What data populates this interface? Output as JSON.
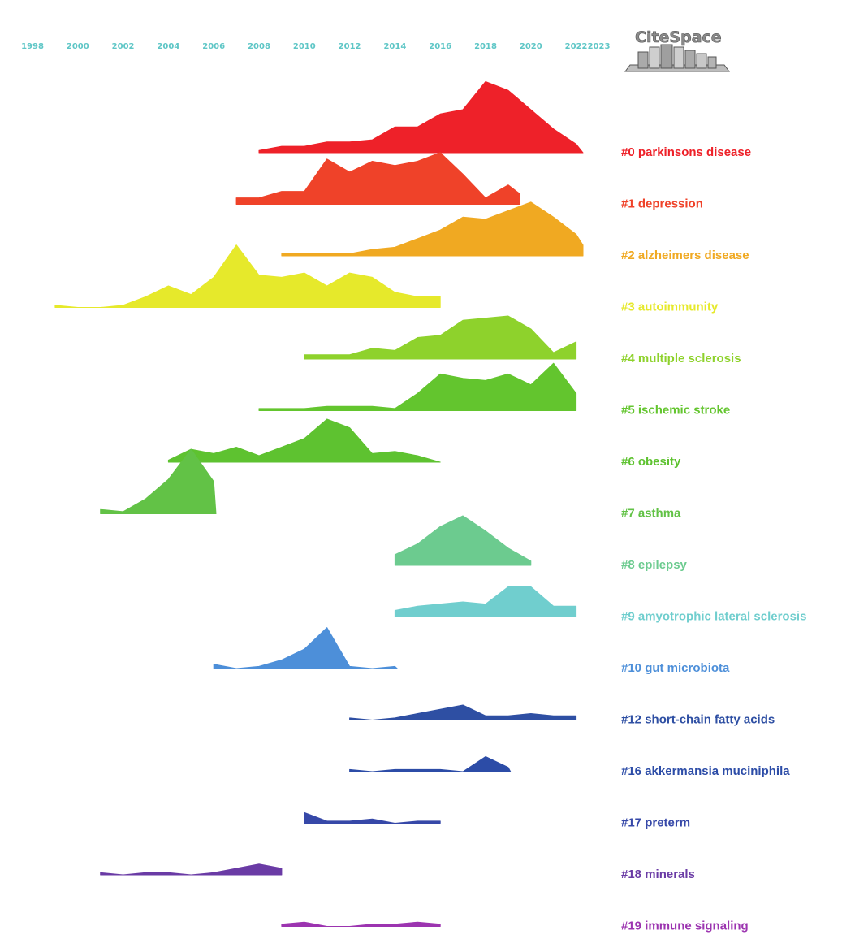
{
  "logo": {
    "text": "CiteSpace"
  },
  "colors": {
    "year_axis": "#5ec6c6",
    "logo_text": "#8a8a8a",
    "logo_stroke": "#555555"
  },
  "chart_data": {
    "type": "area",
    "subtype": "timeline-view",
    "x_ticks": [
      "1998",
      "2000",
      "2002",
      "2004",
      "2006",
      "2008",
      "2010",
      "2012",
      "2014",
      "2016",
      "2018",
      "2020",
      "2022",
      "2023"
    ],
    "xlim": [
      1998,
      2023
    ],
    "series": [
      {
        "name": "#0 parkinsons disease",
        "color": "#ee2129",
        "points": [
          [
            2008,
            1
          ],
          [
            2009,
            3
          ],
          [
            2010,
            3
          ],
          [
            2011,
            5
          ],
          [
            2012,
            5
          ],
          [
            2013,
            6
          ],
          [
            2014,
            12
          ],
          [
            2015,
            12
          ],
          [
            2016,
            18
          ],
          [
            2017,
            20
          ],
          [
            2018,
            33
          ],
          [
            2019,
            29
          ],
          [
            2020,
            20
          ],
          [
            2021,
            11
          ],
          [
            2022,
            4
          ],
          [
            2022.3,
            0
          ]
        ]
      },
      {
        "name": "#1 depression",
        "color": "#ef4229",
        "points": [
          [
            2007,
            3
          ],
          [
            2008,
            3
          ],
          [
            2009,
            6
          ],
          [
            2010,
            6
          ],
          [
            2011,
            21
          ],
          [
            2012,
            15
          ],
          [
            2013,
            20
          ],
          [
            2014,
            18
          ],
          [
            2015,
            20
          ],
          [
            2016,
            24
          ],
          [
            2017,
            14
          ],
          [
            2018,
            3
          ],
          [
            2019,
            9
          ],
          [
            2019.5,
            5
          ]
        ]
      },
      {
        "name": "#2 alzheimers disease",
        "color": "#f0a922",
        "points": [
          [
            2009,
            1
          ],
          [
            2009.8,
            1
          ],
          [
            2012,
            1
          ],
          [
            2013,
            3
          ],
          [
            2014,
            4
          ],
          [
            2015,
            8
          ],
          [
            2016,
            12
          ],
          [
            2017,
            18
          ],
          [
            2018,
            17
          ],
          [
            2019,
            21
          ],
          [
            2020,
            25
          ],
          [
            2021,
            18
          ],
          [
            2022,
            10
          ],
          [
            2022.3,
            5
          ]
        ]
      },
      {
        "name": "#3 autoimmunity",
        "color": "#e6e92b",
        "points": [
          [
            1999,
            1
          ],
          [
            2000,
            0
          ],
          [
            2001,
            0
          ],
          [
            2002,
            1
          ],
          [
            2003,
            5
          ],
          [
            2004,
            10
          ],
          [
            2005,
            6
          ],
          [
            2006,
            14
          ],
          [
            2007,
            29
          ],
          [
            2008,
            15
          ],
          [
            2009,
            14
          ],
          [
            2010,
            16
          ],
          [
            2011,
            10
          ],
          [
            2012,
            16
          ],
          [
            2013,
            14
          ],
          [
            2014,
            7
          ],
          [
            2015,
            5
          ],
          [
            2016,
            5
          ]
        ]
      },
      {
        "name": "#4 multiple sclerosis",
        "color": "#8ed22c",
        "points": [
          [
            2010,
            2
          ],
          [
            2011,
            2
          ],
          [
            2012,
            2
          ],
          [
            2013,
            5
          ],
          [
            2014,
            4
          ],
          [
            2015,
            10
          ],
          [
            2016,
            11
          ],
          [
            2017,
            18
          ],
          [
            2018,
            19
          ],
          [
            2019,
            20
          ],
          [
            2020,
            14
          ],
          [
            2021,
            3
          ],
          [
            2022,
            8
          ]
        ]
      },
      {
        "name": "#5 ischemic stroke",
        "color": "#63c52e",
        "points": [
          [
            2008,
            1
          ],
          [
            2009,
            1
          ],
          [
            2010,
            1
          ],
          [
            2011,
            2
          ],
          [
            2012,
            2
          ],
          [
            2013,
            2
          ],
          [
            2014,
            1
          ],
          [
            2015,
            8
          ],
          [
            2016,
            17
          ],
          [
            2017,
            15
          ],
          [
            2018,
            14
          ],
          [
            2019,
            17
          ],
          [
            2020,
            12
          ],
          [
            2021,
            22
          ],
          [
            2022,
            8
          ]
        ]
      },
      {
        "name": "#6 obesity",
        "color": "#5ec230",
        "points": [
          [
            2004,
            1
          ],
          [
            2005,
            6
          ],
          [
            2006,
            4
          ],
          [
            2007,
            7
          ],
          [
            2008,
            3
          ],
          [
            2009,
            7
          ],
          [
            2010,
            11
          ],
          [
            2011,
            20
          ],
          [
            2012,
            16
          ],
          [
            2013,
            4
          ],
          [
            2014,
            5
          ],
          [
            2015,
            3
          ],
          [
            2016,
            0
          ]
        ]
      },
      {
        "name": "#7 asthma",
        "color": "#62c246",
        "points": [
          [
            2001,
            2
          ],
          [
            2002,
            1
          ],
          [
            2003,
            7
          ],
          [
            2004,
            16
          ],
          [
            2005,
            30
          ],
          [
            2006,
            15
          ],
          [
            2006.1,
            0
          ]
        ]
      },
      {
        "name": "#8 epilepsy",
        "color": "#6ccb8f",
        "points": [
          [
            2014,
            5
          ],
          [
            2015,
            10
          ],
          [
            2016,
            18
          ],
          [
            2017,
            23
          ],
          [
            2018,
            16
          ],
          [
            2019,
            8
          ],
          [
            2020,
            2
          ]
        ]
      },
      {
        "name": "#9 amyotrophic lateral sclerosis",
        "color": "#70cece",
        "points": [
          [
            2014,
            3
          ],
          [
            2015,
            5
          ],
          [
            2016,
            6
          ],
          [
            2017,
            7
          ],
          [
            2018,
            6
          ],
          [
            2019,
            14
          ],
          [
            2020,
            14
          ],
          [
            2021,
            5
          ],
          [
            2022,
            5
          ]
        ]
      },
      {
        "name": "#10 gut microbiota",
        "color": "#4d8fd9",
        "points": [
          [
            2006,
            2
          ],
          [
            2007,
            0
          ],
          [
            2008,
            1
          ],
          [
            2009,
            4
          ],
          [
            2010,
            9
          ],
          [
            2011,
            19
          ],
          [
            2012,
            1
          ],
          [
            2013,
            0
          ],
          [
            2014,
            1
          ],
          [
            2014.1,
            0
          ]
        ]
      },
      {
        "name": "#12 short-chain fatty acids",
        "color": "#2e4fa3",
        "points": [
          [
            2012,
            1
          ],
          [
            2013,
            0
          ],
          [
            2014,
            1
          ],
          [
            2015,
            3
          ],
          [
            2016,
            5
          ],
          [
            2017,
            7
          ],
          [
            2018,
            2
          ],
          [
            2019,
            2
          ],
          [
            2020,
            3
          ],
          [
            2021,
            2
          ],
          [
            2022,
            2
          ]
        ]
      },
      {
        "name": "#16 akkermansia muciniphila",
        "color": "#2c4ca7",
        "points": [
          [
            2012,
            1
          ],
          [
            2013,
            0
          ],
          [
            2014,
            1
          ],
          [
            2015,
            1
          ],
          [
            2016,
            1
          ],
          [
            2017,
            0
          ],
          [
            2018,
            7
          ],
          [
            2019,
            2
          ],
          [
            2019.1,
            0
          ]
        ]
      },
      {
        "name": "#17 preterm",
        "color": "#3648a8",
        "points": [
          [
            2010,
            5
          ],
          [
            2011,
            1
          ],
          [
            2012,
            1
          ],
          [
            2013,
            2
          ],
          [
            2014,
            0
          ],
          [
            2015,
            1
          ],
          [
            2016,
            1
          ]
        ]
      },
      {
        "name": "#18 minerals",
        "color": "#6a3ba5",
        "points": [
          [
            2001,
            1
          ],
          [
            2002,
            0
          ],
          [
            2003,
            1
          ],
          [
            2004,
            1
          ],
          [
            2005,
            0
          ],
          [
            2006,
            1
          ],
          [
            2007,
            3
          ],
          [
            2008,
            5
          ],
          [
            2009,
            3
          ]
        ]
      },
      {
        "name": "#19 immune signaling",
        "color": "#9c34b0",
        "points": [
          [
            2009,
            1
          ],
          [
            2010,
            2
          ],
          [
            2011,
            0
          ],
          [
            2012,
            0
          ],
          [
            2013,
            1
          ],
          [
            2014,
            1
          ],
          [
            2015,
            2
          ],
          [
            2016,
            1
          ]
        ]
      }
    ]
  }
}
